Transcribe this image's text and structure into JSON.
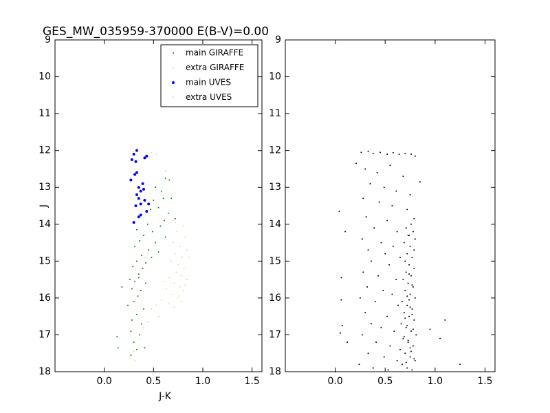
{
  "chart_data": [
    {
      "type": "scatter",
      "title": "GES_MW_035959-370000 E(B-V)=0.00",
      "x_label": "J-K",
      "y_label": "J",
      "xlim": [
        -0.5,
        1.6
      ],
      "ylim": [
        18,
        9
      ],
      "xticks": [
        {
          "value": 0,
          "label": "0.0"
        },
        0.5,
        {
          "value": 1,
          "label": "1.0"
        },
        1.5
      ],
      "yticks": [
        9,
        10,
        11,
        12,
        13,
        14,
        15,
        16,
        17,
        18
      ],
      "legend": "upper right",
      "series": [
        {
          "name": "main GIRAFFE",
          "color": "#008000",
          "marker_size": 2,
          "x": [
            0.62,
            0.66,
            0.52,
            0.58,
            0.68,
            0.6,
            0.5,
            0.55,
            0.47,
            0.65,
            0.72,
            0.61,
            0.44,
            0.57,
            0.33,
            0.49,
            0.4,
            0.62,
            0.36,
            0.52,
            0.31,
            0.45,
            0.55,
            0.38,
            0.48,
            0.33,
            0.42,
            0.29,
            0.39,
            0.35,
            0.26,
            0.31,
            0.42,
            0.18,
            0.28,
            0.37,
            0.34,
            0.3,
            0.24,
            0.4,
            0.33,
            0.28,
            0.38,
            0.27,
            0.36,
            0.13,
            0.3,
            0.33,
            0.14,
            0.27,
            0.41,
            0.35
          ],
          "values": [
            12.75,
            12.8,
            13.0,
            13.1,
            13.3,
            13.3,
            13.35,
            13.55,
            13.6,
            13.7,
            13.85,
            13.9,
            14.0,
            14.05,
            14.15,
            14.2,
            14.3,
            14.35,
            14.45,
            14.5,
            14.6,
            14.7,
            14.75,
            14.85,
            14.9,
            15.0,
            15.05,
            15.15,
            15.2,
            15.35,
            15.5,
            15.55,
            15.6,
            15.7,
            15.75,
            15.8,
            15.95,
            16.1,
            16.2,
            16.3,
            16.45,
            16.6,
            16.7,
            16.9,
            17.0,
            17.05,
            17.2,
            17.4,
            17.35,
            17.55,
            17.35,
            15.45
          ]
        },
        {
          "name": "extra GIRAFFE",
          "color": "#f5c26b",
          "marker_size": 1.6,
          "x": [
            0.8,
            0.74,
            0.82,
            0.7,
            0.77,
            0.84,
            0.72,
            0.79,
            0.68,
            0.75,
            0.81,
            0.73,
            0.78,
            0.66,
            0.84,
            0.71,
            0.77,
            0.63,
            0.8,
            0.69,
            0.74,
            0.58,
            0.79,
            0.65,
            0.71,
            0.53,
            0.76,
            0.82,
            0.6,
            0.86,
            0.48,
            0.55,
            0.44,
            0.4,
            0.36,
            0.45,
            0.3,
            0.26,
            0.31,
            0.72,
            0.62
          ],
          "values": [
            14.05,
            14.2,
            14.35,
            14.5,
            14.6,
            14.7,
            14.8,
            14.9,
            15.0,
            15.1,
            15.2,
            15.3,
            15.4,
            15.45,
            15.5,
            15.6,
            15.7,
            15.75,
            15.8,
            15.9,
            16.0,
            16.05,
            16.1,
            16.15,
            16.25,
            16.2,
            15.95,
            15.65,
            15.55,
            14.9,
            16.3,
            16.5,
            16.65,
            16.8,
            17.1,
            17.3,
            17.45,
            17.6,
            17.7,
            13.95,
            12.55
          ]
        },
        {
          "name": "main UVES",
          "color": "#0000ff",
          "marker_size": 4,
          "x": [
            0.33,
            0.3,
            0.28,
            0.32,
            0.43,
            0.41,
            0.33,
            0.31,
            0.27,
            0.39,
            0.35,
            0.4,
            0.37,
            0.33,
            0.35,
            0.41,
            0.37,
            0.32,
            0.45,
            0.43,
            0.37,
            0.35,
            0.3
          ],
          "values": [
            12.0,
            12.1,
            12.25,
            12.3,
            12.15,
            12.2,
            12.6,
            12.65,
            12.8,
            12.9,
            13.0,
            13.05,
            13.1,
            13.2,
            13.3,
            13.35,
            13.45,
            13.5,
            13.45,
            13.65,
            13.75,
            13.8,
            13.95
          ]
        },
        {
          "name": "extra UVES",
          "color": "#d9c4bd",
          "marker_size": 1.6,
          "x": [
            0.53,
            0.63,
            0.69,
            0.48
          ],
          "values": [
            12.1,
            12.55,
            12.75,
            12.05
          ]
        }
      ]
    },
    {
      "type": "scatter",
      "xlim": [
        -0.5,
        1.6
      ],
      "ylim": [
        18,
        9
      ],
      "xticks": [
        {
          "value": 0,
          "label": "0.0"
        },
        0.5,
        {
          "value": 1,
          "label": "1.0"
        },
        1.5
      ],
      "yticks": [
        9,
        10,
        11,
        12,
        13,
        14,
        15,
        16,
        17,
        18
      ],
      "series": [
        {
          "color": "#000000",
          "marker_size": 2,
          "x": [
            0.26,
            0.33,
            0.38,
            0.45,
            0.52,
            0.58,
            0.64,
            0.7,
            0.76,
            0.8,
            0.21,
            0.3,
            0.42,
            0.55,
            0.68,
            0.35,
            0.49,
            0.61,
            0.75,
            0.28,
            0.44,
            0.57,
            0.72,
            0.31,
            0.52,
            0.79,
            0.39,
            0.62,
            0.74,
            0.27,
            0.46,
            0.58,
            0.33,
            0.5,
            0.65,
            0.36,
            0.54,
            0.28,
            0.43,
            0.61,
            0.32,
            0.48,
            0.57,
            0.25,
            0.4,
            0.63,
            0.3,
            0.52,
            0.36,
            0.46,
            0.59,
            0.27,
            0.41,
            0.55,
            0.33,
            0.49,
            0.62,
            0.24,
            0.38,
            0.53,
            0.76,
            0.71,
            0.78,
            0.73,
            0.8,
            0.69,
            0.75,
            0.79,
            0.72,
            0.77,
            0.7,
            0.74,
            0.79,
            0.71,
            0.76,
            0.68,
            0.73,
            0.78,
            0.7,
            0.75,
            0.8,
            0.67,
            0.72,
            0.77,
            0.69,
            0.74,
            0.79,
            0.66,
            0.71,
            0.76,
            0.81,
            0.68,
            0.73,
            0.78,
            0.65,
            0.7,
            0.75,
            0.8,
            0.67,
            0.72,
            0.77,
            0.74,
            0.77,
            0.72,
            0.75,
            0.7,
            0.78,
            0.73,
            0.76,
            0.71,
            0.74,
            0.77,
            0.72,
            0.69,
            0.75,
            0.79,
            0.04,
            0.06,
            0.07,
            0.05,
            0.12,
            1.1,
            1.05,
            0.95,
            1.25,
            0.0,
            0.85,
            0.1,
            0.06
          ],
          "values": [
            12.05,
            12.02,
            12.08,
            12.05,
            12.1,
            12.06,
            12.1,
            12.08,
            12.1,
            12.15,
            12.35,
            12.5,
            12.6,
            12.4,
            12.7,
            12.9,
            13.0,
            13.1,
            13.2,
            13.3,
            13.4,
            13.5,
            13.6,
            13.8,
            13.9,
            13.85,
            14.1,
            14.2,
            14.3,
            14.4,
            14.5,
            14.6,
            14.7,
            14.8,
            14.9,
            15.0,
            15.1,
            15.3,
            15.4,
            15.5,
            15.7,
            15.8,
            15.9,
            16.0,
            16.1,
            16.2,
            16.4,
            16.5,
            16.7,
            16.8,
            16.9,
            17.0,
            17.2,
            17.3,
            17.5,
            17.6,
            17.7,
            17.8,
            17.9,
            17.95,
            14.0,
            14.1,
            14.2,
            14.3,
            14.4,
            14.5,
            14.6,
            14.7,
            14.8,
            14.9,
            15.0,
            15.1,
            15.2,
            15.3,
            15.4,
            15.5,
            15.6,
            15.7,
            15.8,
            15.9,
            16.0,
            16.1,
            16.2,
            16.3,
            16.4,
            16.5,
            16.6,
            16.7,
            16.8,
            16.9,
            17.0,
            17.1,
            17.2,
            17.3,
            17.4,
            17.5,
            17.6,
            17.7,
            17.8,
            17.9,
            17.95,
            15.35,
            15.65,
            15.95,
            16.25,
            16.55,
            16.85,
            17.15,
            17.45,
            17.75,
            16.05,
            16.45,
            16.75,
            17.05,
            17.35,
            17.65,
            13.65,
            15.45,
            16.75,
            16.95,
            17.2,
            16.6,
            17.1,
            16.85,
            17.8,
            18.0,
            12.85,
            14.2,
            16.05
          ]
        }
      ]
    }
  ]
}
